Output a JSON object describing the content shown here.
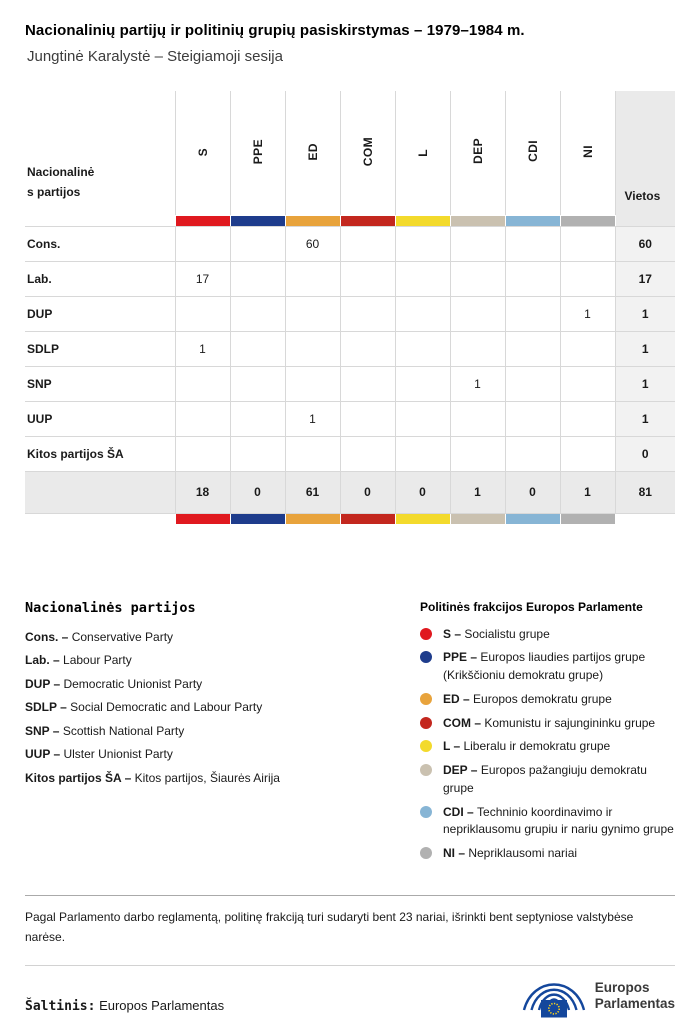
{
  "page": {
    "title": "Nacionalinių partijų ir politinių grupių pasiskirstymas – 1979–1984 m.",
    "subtitle": "Jungtinė Karalystė – Steigiamoji sesija"
  },
  "chart_data": {
    "type": "table",
    "title": "Nacionalinių partijų ir politinių grupių pasiskirstymas – 1979–1984 m.",
    "subtitle": "Jungtinė Karalystė – Steigiamoji sesija",
    "row_header": "Nacionalinės partijos",
    "seats_header": "Vietos",
    "groups": [
      {
        "code": "S",
        "color": "#e0191f"
      },
      {
        "code": "PPE",
        "color": "#1e3c8c"
      },
      {
        "code": "ED",
        "color": "#e8a33c"
      },
      {
        "code": "COM",
        "color": "#c3271e"
      },
      {
        "code": "L",
        "color": "#f3da2c"
      },
      {
        "code": "DEP",
        "color": "#cac1b0"
      },
      {
        "code": "CDI",
        "color": "#87b5d5"
      },
      {
        "code": "NI",
        "color": "#b1b1b1"
      }
    ],
    "rows": [
      {
        "label": "Cons.",
        "values": [
          null,
          null,
          60,
          null,
          null,
          null,
          null,
          null
        ],
        "seats": 60
      },
      {
        "label": "Lab.",
        "values": [
          17,
          null,
          null,
          null,
          null,
          null,
          null,
          null
        ],
        "seats": 17
      },
      {
        "label": "DUP",
        "values": [
          null,
          null,
          null,
          null,
          null,
          null,
          null,
          1
        ],
        "seats": 1
      },
      {
        "label": "SDLP",
        "values": [
          1,
          null,
          null,
          null,
          null,
          null,
          null,
          null
        ],
        "seats": 1
      },
      {
        "label": "SNP",
        "values": [
          null,
          null,
          null,
          null,
          null,
          1,
          null,
          null
        ],
        "seats": 1
      },
      {
        "label": "UUP",
        "values": [
          null,
          null,
          1,
          null,
          null,
          null,
          null,
          null
        ],
        "seats": 1
      },
      {
        "label": "Kitos partijos ŠA",
        "values": [
          null,
          null,
          null,
          null,
          null,
          null,
          null,
          null
        ],
        "seats": 0
      }
    ],
    "totals": {
      "values": [
        18,
        0,
        61,
        0,
        0,
        1,
        0,
        1
      ],
      "seats": 81
    }
  },
  "party_legend": {
    "heading": "Nacionalinės partijos",
    "items": [
      {
        "label": "Cons. –",
        "text": "Conservative Party"
      },
      {
        "label": "Lab. –",
        "text": "Labour Party"
      },
      {
        "label": "DUP –",
        "text": "Democratic Unionist Party"
      },
      {
        "label": "SDLP –",
        "text": "Social Democratic and Labour Party"
      },
      {
        "label": "SNP –",
        "text": "Scottish National Party"
      },
      {
        "label": "UUP –",
        "text": "Ulster Unionist Party"
      },
      {
        "label": "Kitos partijos ŠA –",
        "text": "Kitos partijos, Šiaurės Airija"
      }
    ]
  },
  "group_legend": {
    "heading": "Politinės frakcijos Europos Parlamente",
    "items": [
      {
        "label": "S –",
        "text": "Socialistu grupe"
      },
      {
        "label": "PPE –",
        "text": "Europos liaudies partijos grupe (Krikščioniu demokratu grupe)"
      },
      {
        "label": "ED –",
        "text": "Europos demokratu grupe"
      },
      {
        "label": "COM –",
        "text": "Komunistu ir sajungininku grupe"
      },
      {
        "label": "L –",
        "text": "Liberalu ir demokratu grupe"
      },
      {
        "label": "DEP –",
        "text": "Europos pažangiuju demokratu grupe"
      },
      {
        "label": "CDI –",
        "text": "Techninio koordinavimo ir nepriklausomu grupiu ir nariu gynimo grupe"
      },
      {
        "label": "NI –",
        "text": "Nepriklausomi nariai"
      }
    ]
  },
  "footer": {
    "note": "Pagal Parlamento darbo reglamentą, politinę frakciją turi sudaryti bent 23 nariai, išrinkti bent septyniose valstybėse narėse.",
    "source_label": "Šaltinis:",
    "source_text": "Europos Parlamentas",
    "logo": {
      "line1": "Europos",
      "line2": "Parlamentas"
    }
  }
}
